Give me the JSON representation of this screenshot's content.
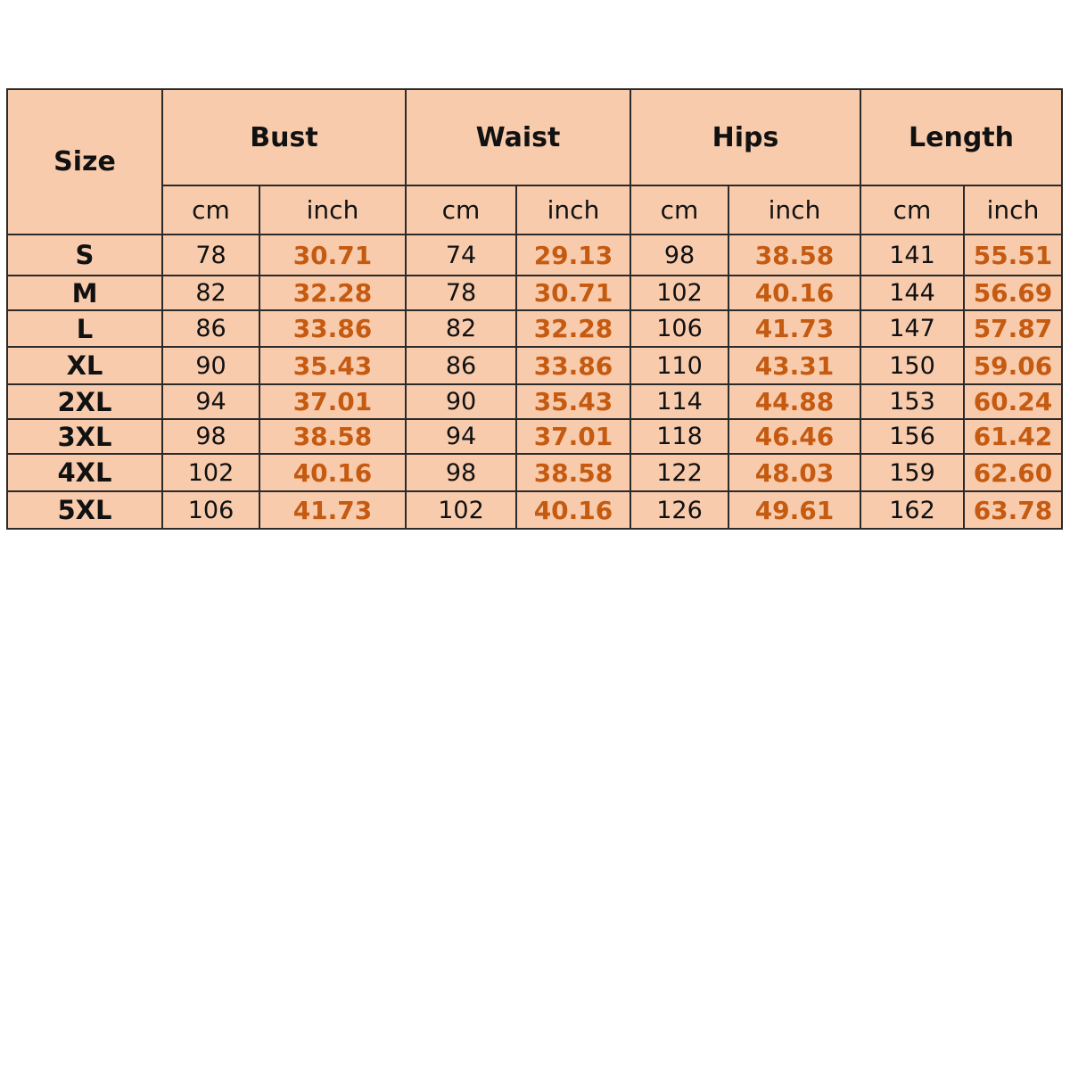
{
  "table": {
    "size_header": "Size",
    "groups": [
      "Bust",
      "Waist",
      "Hips",
      "Length"
    ],
    "units": [
      "cm",
      "inch"
    ],
    "rows": [
      {
        "size": "S",
        "values": [
          "78",
          "30.71",
          "74",
          "29.13",
          "98",
          "38.58",
          "141",
          "55.51"
        ]
      },
      {
        "size": "M",
        "values": [
          "82",
          "32.28",
          "78",
          "30.71",
          "102",
          "40.16",
          "144",
          "56.69"
        ]
      },
      {
        "size": "L",
        "values": [
          "86",
          "33.86",
          "82",
          "32.28",
          "106",
          "41.73",
          "147",
          "57.87"
        ]
      },
      {
        "size": "XL",
        "values": [
          "90",
          "35.43",
          "86",
          "33.86",
          "110",
          "43.31",
          "150",
          "59.06"
        ]
      },
      {
        "size": "2XL",
        "values": [
          "94",
          "37.01",
          "90",
          "35.43",
          "114",
          "44.88",
          "153",
          "60.24"
        ]
      },
      {
        "size": "3XL",
        "values": [
          "98",
          "38.58",
          "94",
          "37.01",
          "118",
          "46.46",
          "156",
          "61.42"
        ]
      },
      {
        "size": "4XL",
        "values": [
          "102",
          "40.16",
          "98",
          "38.58",
          "122",
          "48.03",
          "159",
          "62.60"
        ]
      },
      {
        "size": "5XL",
        "values": [
          "106",
          "41.73",
          "102",
          "40.16",
          "126",
          "49.61",
          "162",
          "63.78"
        ]
      }
    ]
  },
  "colors": {
    "background": "#F8CBAD",
    "inch_text": "#C55A11",
    "border": "#2a2a2a"
  }
}
